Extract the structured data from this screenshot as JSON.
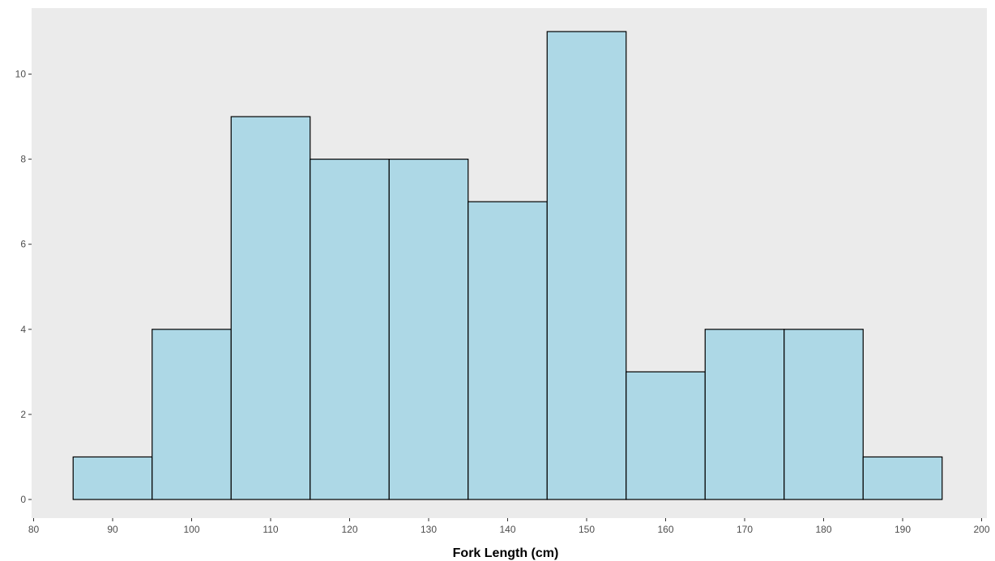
{
  "chart_data": {
    "type": "bar",
    "title": "",
    "xlabel": "Fork Length (cm)",
    "ylabel": "",
    "bin_width": 10,
    "bins": [
      {
        "x0": 85,
        "x1": 95,
        "count": 1
      },
      {
        "x0": 95,
        "x1": 105,
        "count": 4
      },
      {
        "x0": 105,
        "x1": 115,
        "count": 9
      },
      {
        "x0": 115,
        "x1": 125,
        "count": 8
      },
      {
        "x0": 125,
        "x1": 135,
        "count": 8
      },
      {
        "x0": 135,
        "x1": 145,
        "count": 7
      },
      {
        "x0": 145,
        "x1": 155,
        "count": 11
      },
      {
        "x0": 155,
        "x1": 165,
        "count": 3
      },
      {
        "x0": 165,
        "x1": 175,
        "count": 4
      },
      {
        "x0": 175,
        "x1": 185,
        "count": 4
      },
      {
        "x0": 185,
        "x1": 195,
        "count": 1
      }
    ],
    "xlim": [
      80,
      200
    ],
    "ylim": [
      0,
      11
    ],
    "x_ticks": [
      "80",
      "90",
      "100",
      "110",
      "120",
      "130",
      "140",
      "150",
      "160",
      "170",
      "180",
      "190",
      "200"
    ],
    "y_ticks": [
      "0",
      "2",
      "4",
      "6",
      "8",
      "10"
    ],
    "grid": false,
    "legend": "none",
    "colors": {
      "bar_fill": "#add8e6",
      "bar_stroke": "#000000",
      "panel_background": "#ebebeb",
      "tick_label": "#4d4d4d",
      "tick_mark": "#333333"
    }
  }
}
